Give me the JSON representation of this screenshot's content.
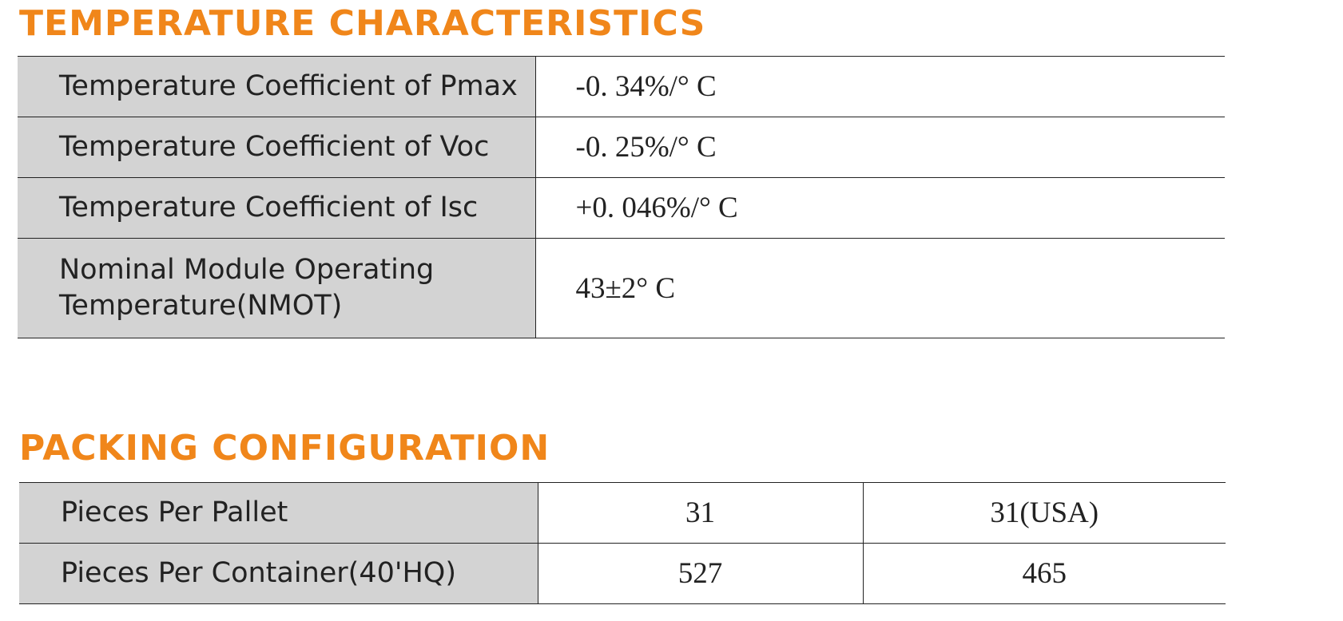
{
  "sections": [
    {
      "title": "TEMPERATURE CHARACTERISTICS",
      "rows": [
        [
          "Temperature Coefficient of Pmax",
          "-0. 34%/° C"
        ],
        [
          "Temperature Coefficient of Voc",
          "-0. 25%/° C"
        ],
        [
          "Temperature Coefficient of Isc",
          "+0. 046%/° C"
        ],
        [
          "Nominal Module Operating Temperature(NMOT)",
          "43±2° C"
        ]
      ]
    },
    {
      "title": "PACKING CONFIGURATION",
      "rows": [
        [
          "Pieces Per Pallet",
          "31",
          "31(USA)"
        ],
        [
          "Pieces Per Container(40'HQ)",
          "527",
          "465"
        ]
      ]
    }
  ]
}
